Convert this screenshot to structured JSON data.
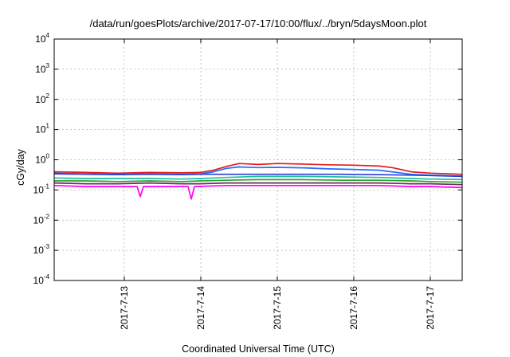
{
  "chart_data": {
    "type": "line",
    "title": "/data/run/goesPlots/archive/2017-07-17/10:00/flux/../bryn/5daysMoon.plot",
    "xlabel": "Coordinated Universal Time (UTC)",
    "ylabel": "cGy/day",
    "y_scale": "log",
    "ylim": [
      0.0001,
      10000
    ],
    "y_ticks": [
      {
        "base": "10",
        "exp": "-4",
        "value": 0.0001
      },
      {
        "base": "10",
        "exp": "-3",
        "value": 0.001
      },
      {
        "base": "10",
        "exp": "-2",
        "value": 0.01
      },
      {
        "base": "10",
        "exp": "-1",
        "value": 0.1
      },
      {
        "base": "10",
        "exp": "0",
        "value": 1
      },
      {
        "base": "10",
        "exp": "1",
        "value": 10
      },
      {
        "base": "10",
        "exp": "2",
        "value": 100
      },
      {
        "base": "10",
        "exp": "3",
        "value": 1000
      },
      {
        "base": "10",
        "exp": "4",
        "value": 10000
      }
    ],
    "xlim": [
      "2017-07-12T02:00",
      "2017-07-17T10:00"
    ],
    "x_ticks": [
      "2017-7-13",
      "2017-7-14",
      "2017-7-15",
      "2017-7-16",
      "2017-7-17"
    ],
    "grid": true,
    "series": [
      {
        "color": "#e41a1c",
        "x": [
          "2017-07-12T02:00",
          "2017-07-12T12:00",
          "2017-07-12T22:00",
          "2017-07-13T08:00",
          "2017-07-13T18:00",
          "2017-07-14T00:00",
          "2017-07-14T04:00",
          "2017-07-14T08:00",
          "2017-07-14T12:00",
          "2017-07-14T18:00",
          "2017-07-15T00:00",
          "2017-07-15T08:00",
          "2017-07-15T16:00",
          "2017-07-16T00:00",
          "2017-07-16T08:00",
          "2017-07-16T12:00",
          "2017-07-16T18:00",
          "2017-07-17T00:00",
          "2017-07-17T10:00"
        ],
        "values": [
          0.4,
          0.38,
          0.36,
          0.38,
          0.37,
          0.38,
          0.45,
          0.6,
          0.75,
          0.7,
          0.75,
          0.72,
          0.68,
          0.66,
          0.62,
          0.55,
          0.4,
          0.36,
          0.33
        ]
      },
      {
        "color": "#1f6fff",
        "x": [
          "2017-07-12T02:00",
          "2017-07-12T12:00",
          "2017-07-12T22:00",
          "2017-07-13T08:00",
          "2017-07-13T18:00",
          "2017-07-14T00:00",
          "2017-07-14T04:00",
          "2017-07-14T08:00",
          "2017-07-14T12:00",
          "2017-07-14T18:00",
          "2017-07-15T00:00",
          "2017-07-15T08:00",
          "2017-07-15T16:00",
          "2017-07-16T00:00",
          "2017-07-16T08:00",
          "2017-07-16T12:00",
          "2017-07-16T18:00",
          "2017-07-17T00:00",
          "2017-07-17T10:00"
        ],
        "values": [
          0.36,
          0.34,
          0.33,
          0.34,
          0.33,
          0.34,
          0.4,
          0.52,
          0.58,
          0.55,
          0.56,
          0.54,
          0.5,
          0.48,
          0.45,
          0.4,
          0.33,
          0.31,
          0.29
        ]
      },
      {
        "color": "#2b3bd4",
        "x": [
          "2017-07-12T02:00",
          "2017-07-12T12:00",
          "2017-07-12T22:00",
          "2017-07-13T08:00",
          "2017-07-13T18:00",
          "2017-07-14T00:00",
          "2017-07-14T08:00",
          "2017-07-14T18:00",
          "2017-07-15T08:00",
          "2017-07-15T20:00",
          "2017-07-16T08:00",
          "2017-07-16T18:00",
          "2017-07-17T00:00",
          "2017-07-17T10:00"
        ],
        "values": [
          0.34,
          0.33,
          0.32,
          0.33,
          0.32,
          0.33,
          0.33,
          0.33,
          0.33,
          0.33,
          0.32,
          0.31,
          0.3,
          0.28
        ]
      },
      {
        "color": "#1fbfa0",
        "x": [
          "2017-07-12T02:00",
          "2017-07-12T12:00",
          "2017-07-12T22:00",
          "2017-07-13T08:00",
          "2017-07-13T18:00",
          "2017-07-14T00:00",
          "2017-07-14T08:00",
          "2017-07-14T18:00",
          "2017-07-15T08:00",
          "2017-07-15T20:00",
          "2017-07-16T08:00",
          "2017-07-16T18:00",
          "2017-07-17T00:00",
          "2017-07-17T10:00"
        ],
        "values": [
          0.25,
          0.24,
          0.24,
          0.24,
          0.23,
          0.24,
          0.26,
          0.28,
          0.28,
          0.27,
          0.26,
          0.24,
          0.23,
          0.22
        ]
      },
      {
        "color": "#2ca02c",
        "x": [
          "2017-07-12T02:00",
          "2017-07-12T12:00",
          "2017-07-12T22:00",
          "2017-07-13T08:00",
          "2017-07-13T18:00",
          "2017-07-14T00:00",
          "2017-07-14T08:00",
          "2017-07-14T18:00",
          "2017-07-15T08:00",
          "2017-07-15T20:00",
          "2017-07-16T08:00",
          "2017-07-16T18:00",
          "2017-07-17T00:00",
          "2017-07-17T10:00"
        ],
        "values": [
          0.2,
          0.2,
          0.19,
          0.2,
          0.19,
          0.2,
          0.21,
          0.22,
          0.22,
          0.21,
          0.21,
          0.2,
          0.19,
          0.18
        ]
      },
      {
        "color": "#6b2d5c",
        "x": [
          "2017-07-12T02:00",
          "2017-07-12T12:00",
          "2017-07-12T22:00",
          "2017-07-13T08:00",
          "2017-07-13T18:00",
          "2017-07-14T00:00",
          "2017-07-14T08:00",
          "2017-07-14T18:00",
          "2017-07-15T08:00",
          "2017-07-15T20:00",
          "2017-07-16T08:00",
          "2017-07-16T18:00",
          "2017-07-17T00:00",
          "2017-07-17T10:00"
        ],
        "values": [
          0.17,
          0.16,
          0.16,
          0.17,
          0.16,
          0.16,
          0.17,
          0.17,
          0.17,
          0.17,
          0.17,
          0.16,
          0.16,
          0.15
        ]
      },
      {
        "color": "#ff00ff",
        "x": [
          "2017-07-12T02:00",
          "2017-07-12T12:00",
          "2017-07-12T22:00",
          "2017-07-13T04:00",
          "2017-07-13T05:00",
          "2017-07-13T06:00",
          "2017-07-13T12:00",
          "2017-07-13T20:00",
          "2017-07-13T21:00",
          "2017-07-13T22:00",
          "2017-07-14T08:00",
          "2017-07-14T18:00",
          "2017-07-15T08:00",
          "2017-07-15T20:00",
          "2017-07-16T08:00",
          "2017-07-16T18:00",
          "2017-07-17T00:00",
          "2017-07-17T10:00"
        ],
        "values": [
          0.14,
          0.13,
          0.13,
          0.13,
          0.06,
          0.13,
          0.13,
          0.13,
          0.05,
          0.13,
          0.14,
          0.14,
          0.14,
          0.14,
          0.14,
          0.13,
          0.13,
          0.12
        ]
      }
    ]
  }
}
